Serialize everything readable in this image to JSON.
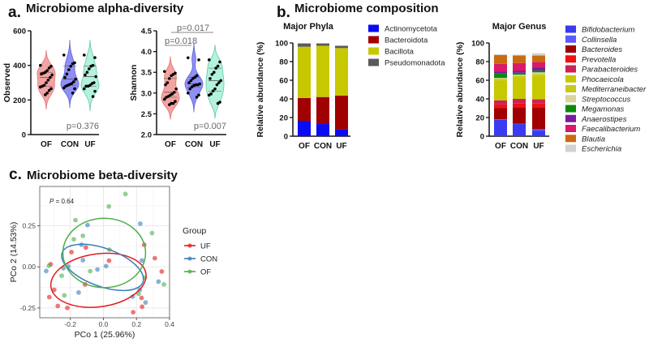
{
  "panels": {
    "a": {
      "letter": "a.",
      "title": "Microbiome alpha-diversity"
    },
    "b": {
      "letter": "b.",
      "title": "Microbiome composition"
    },
    "c": {
      "letter": "c.",
      "title": "Microbiome beta-diversity"
    }
  },
  "colors": {
    "OF": "#f4a3a3",
    "CON": "#8f8ff5",
    "UF": "#b3f2dc",
    "OF_edge": "#e07070",
    "CON_edge": "#6060d8",
    "UF_edge": "#60c8a0"
  },
  "chart_data": [
    {
      "type": "violin",
      "ylabel": "Observed",
      "ylim": [
        0,
        600
      ],
      "yticks": [
        "0",
        "200",
        "400",
        "600"
      ],
      "categories": [
        "OF",
        "CON",
        "UF"
      ],
      "series": [
        {
          "name": "OF",
          "values": [
            400,
            395,
            385,
            370,
            360,
            355,
            350,
            345,
            330,
            315,
            300,
            285,
            280,
            275,
            265,
            255,
            240,
            230
          ]
        },
        {
          "name": "CON",
          "values": [
            460,
            415,
            410,
            395,
            375,
            350,
            330,
            320,
            305,
            295,
            290,
            285,
            280,
            270,
            265,
            240
          ]
        },
        {
          "name": "UF",
          "values": [
            460,
            445,
            400,
            395,
            380,
            360,
            345,
            335,
            300,
            295,
            285,
            280,
            280,
            265,
            250,
            220
          ]
        }
      ],
      "annotations": [
        "p=0.376"
      ]
    },
    {
      "type": "violin",
      "ylabel": "Shannon",
      "ylim": [
        2.0,
        4.5
      ],
      "yticks": [
        "2.0",
        "2.5",
        "3.0",
        "3.5",
        "4.0",
        "4.5"
      ],
      "categories": [
        "OF",
        "CON",
        "UF"
      ],
      "series": [
        {
          "name": "OF",
          "values": [
            3.52,
            3.48,
            3.45,
            3.42,
            3.35,
            3.25,
            3.2,
            3.1,
            3.02,
            2.98,
            2.95,
            2.92,
            2.9,
            2.85,
            2.8,
            2.75,
            2.75,
            2.72
          ]
        },
        {
          "name": "CON",
          "values": [
            3.85,
            3.8,
            3.42,
            3.38,
            3.35,
            3.3,
            3.25,
            3.22,
            3.2,
            3.2,
            3.18,
            3.15,
            3.1,
            3.0,
            2.95,
            2.9
          ]
        },
        {
          "name": "UF",
          "values": [
            3.8,
            3.75,
            3.65,
            3.6,
            3.5,
            3.45,
            3.35,
            3.3,
            3.25,
            3.2,
            3.1,
            3.05,
            2.98,
            2.95,
            2.78,
            2.75
          ]
        }
      ],
      "annotations": [
        "p=0.018",
        "p=0.017",
        "p=0.007"
      ]
    },
    {
      "type": "bar",
      "stacked": true,
      "title": "Major Phyla",
      "ylabel": "Relative abundance (%)",
      "ylim": [
        0,
        100
      ],
      "yticks": [
        "0",
        "20",
        "40",
        "60",
        "80",
        "100"
      ],
      "categories": [
        "OF",
        "CON",
        "UF"
      ],
      "legend": "right",
      "series": [
        {
          "name": "Actinomycetota",
          "color": "#0a0af5",
          "values": [
            16.5,
            13,
            7.5
          ]
        },
        {
          "name": "Bacteroidota",
          "color": "#a00000",
          "values": [
            24.5,
            29,
            36
          ]
        },
        {
          "name": "Bacillota",
          "color": "#c8c800",
          "values": [
            55,
            55,
            51
          ]
        },
        {
          "name": "Pseudomonadota",
          "color": "#5a5a5a",
          "values": [
            3.5,
            2.5,
            2.5
          ]
        }
      ]
    },
    {
      "type": "bar",
      "stacked": true,
      "title": "Major Genus",
      "ylabel": "Relative abundance (%)",
      "ylim": [
        0,
        100
      ],
      "yticks": [
        "0",
        "20",
        "40",
        "60",
        "80",
        "100"
      ],
      "categories": [
        "OF",
        "CON",
        "UF"
      ],
      "legend": "right",
      "series": [
        {
          "name": "Bifidobacterium",
          "color": "#3a3af0",
          "values": [
            17.5,
            13,
            6
          ]
        },
        {
          "name": "Collinsella",
          "color": "#5a5aff",
          "values": [
            0.5,
            0.5,
            1.5
          ]
        },
        {
          "name": "Bacteroides",
          "color": "#a00000",
          "values": [
            12,
            17.5,
            23.5
          ]
        },
        {
          "name": "Prevotella",
          "color": "#ee1111",
          "values": [
            4,
            4,
            4
          ]
        },
        {
          "name": "Parabacteroides",
          "color": "#cc2255",
          "values": [
            4.5,
            5,
            4.5
          ]
        },
        {
          "name": "Phocaeicola",
          "color": "#c8c800",
          "values": [
            21,
            23,
            25
          ]
        },
        {
          "name": "Mediterraneibacter",
          "color": "#c8c820",
          "values": [
            2,
            2,
            2
          ]
        },
        {
          "name": "Streptococcus",
          "color": "#d8d49a",
          "values": [
            1,
            1,
            2
          ]
        },
        {
          "name": "Megamonas",
          "color": "#0a8a0a",
          "values": [
            5,
            2,
            2
          ]
        },
        {
          "name": "Anaerostipes",
          "color": "#7a1aa0",
          "values": [
            2,
            2,
            3
          ]
        },
        {
          "name": "Faecalibacterium",
          "color": "#d81a6a",
          "values": [
            8,
            8.5,
            6
          ]
        },
        {
          "name": "Blautia",
          "color": "#cc6a10",
          "values": [
            9.5,
            8,
            7
          ]
        },
        {
          "name": "Escherichia",
          "color": "#d2d2d2",
          "values": [
            1,
            1,
            2.5
          ]
        }
      ]
    },
    {
      "type": "scatter",
      "xlabel": "PCo 1 (25.96%)",
      "ylabel": "PCo 2 (14.53%)",
      "xlim": [
        -0.385,
        0.4
      ],
      "ylim": [
        -0.31,
        0.49
      ],
      "xticks": [
        "-0.2",
        "0.0",
        "0.2",
        "0.4"
      ],
      "yticks": [
        "-0.25",
        "0.00",
        "0.25"
      ],
      "grid": true,
      "annotation_italic": "P",
      "annotation": " = 0.64",
      "legend": "right",
      "legend_title": "Group",
      "series": [
        {
          "name": "UF",
          "color": "#e41a1c",
          "points": [
            [
              -0.106,
              0.118
            ],
            [
              -0.193,
              0.09
            ],
            [
              -0.319,
              0.016
            ],
            [
              -0.298,
              -0.14
            ],
            [
              -0.327,
              -0.184
            ],
            [
              -0.276,
              -0.238
            ],
            [
              -0.218,
              -0.25
            ],
            [
              -0.111,
              -0.107
            ],
            [
              0.034,
              0.038
            ],
            [
              0.247,
              0.135
            ],
            [
              0.311,
              0.053
            ],
            [
              0.353,
              -0.028
            ],
            [
              0.231,
              -0.189
            ],
            [
              0.234,
              -0.243
            ],
            [
              0.18,
              -0.276
            ]
          ],
          "ellipse": {
            "cx": -0.03,
            "cy": -0.082,
            "rx": 0.29,
            "ry": 0.16,
            "angle": -8
          }
        },
        {
          "name": "CON",
          "color": "#377eb8",
          "points": [
            [
              -0.096,
              0.255
            ],
            [
              -0.132,
              0.135
            ],
            [
              -0.124,
              0.041
            ],
            [
              -0.213,
              0.003
            ],
            [
              -0.242,
              -0.008
            ],
            [
              -0.346,
              -0.025
            ],
            [
              -0.036,
              -0.016
            ],
            [
              0.016,
              0.005
            ],
            [
              -0.15,
              -0.156
            ],
            [
              0.223,
              0.263
            ],
            [
              0.233,
              0.039
            ],
            [
              0.22,
              -0.14
            ],
            [
              0.177,
              -0.181
            ],
            [
              0.255,
              -0.217
            ],
            [
              0.333,
              -0.09
            ]
          ],
          "ellipse": {
            "cx": -0.005,
            "cy": -0.003,
            "rx": 0.26,
            "ry": 0.115,
            "angle": 20
          }
        },
        {
          "name": "OF",
          "color": "#4daf4a",
          "points": [
            [
              0.133,
              0.444
            ],
            [
              0.033,
              0.368
            ],
            [
              -0.169,
              0.285
            ],
            [
              -0.179,
              0.168
            ],
            [
              -0.124,
              0.189
            ],
            [
              0.036,
              0.105
            ],
            [
              -0.08,
              -0.026
            ],
            [
              -0.252,
              -0.054
            ],
            [
              -0.236,
              -0.174
            ],
            [
              -0.33,
              0.007
            ],
            [
              0.294,
              0.206
            ],
            [
              0.25,
              -0.066
            ],
            [
              0.366,
              -0.107
            ],
            [
              0.213,
              -0.164
            ]
          ],
          "ellipse": {
            "cx": 0.005,
            "cy": 0.085,
            "rx": 0.25,
            "ry": 0.21,
            "angle": 0
          }
        }
      ]
    }
  ]
}
